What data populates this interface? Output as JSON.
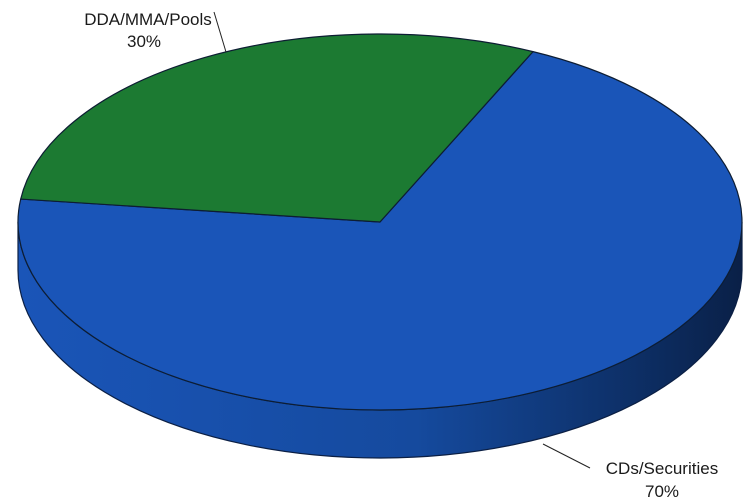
{
  "chart_data": {
    "type": "pie",
    "style": "3d",
    "slices": [
      {
        "label": "CDs/Securities",
        "value": 70,
        "value_label": "70%",
        "color": "#1a55b8",
        "side_color": "#123e8c"
      },
      {
        "label": "DDA/MMA/Pools",
        "value": 30,
        "value_label": "30%",
        "color": "#1c7a32"
      }
    ],
    "legend": "none",
    "title": ""
  }
}
